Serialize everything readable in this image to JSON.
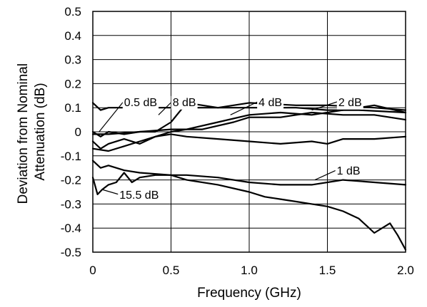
{
  "chart_data": {
    "type": "line",
    "xlabel": "Frequency (GHz)",
    "ylabel_lines": [
      "Deviation from Nominal",
      "Attenuation (dB)"
    ],
    "xlim": [
      0,
      2.0
    ],
    "ylim": [
      -0.5,
      0.5
    ],
    "xticks": [
      "0",
      "0.5",
      "1.0",
      "1.5",
      "2.0"
    ],
    "yticks": [
      "0.5",
      "0.4",
      "0.3",
      "0.2",
      "0.1",
      "0",
      "-0.1",
      "-0.2",
      "-0.3",
      "-0.4",
      "-0.5"
    ],
    "grid": true,
    "series": [
      {
        "name": "0.5 dB",
        "x": [
          0,
          0.05,
          0.1,
          0.2,
          0.3,
          0.5,
          0.7,
          1.0,
          1.3,
          1.5,
          1.7,
          2.0
        ],
        "y": [
          0.12,
          0.09,
          0.1,
          0.1,
          0.1,
          0.1,
          0.1,
          0.1,
          0.1,
          0.09,
          0.09,
          0.08
        ]
      },
      {
        "name": "8 dB",
        "x": [
          0,
          0.05,
          0.1,
          0.2,
          0.3,
          0.4,
          0.5,
          0.6,
          0.8,
          1.0,
          1.3,
          1.5,
          1.8,
          2.0
        ],
        "y": [
          0.0,
          -0.02,
          0.0,
          -0.01,
          0.0,
          0.0,
          0.04,
          0.12,
          0.1,
          0.12,
          0.11,
          0.11,
          0.1,
          0.09
        ]
      },
      {
        "name": "4 dB",
        "x": [
          0,
          0.05,
          0.1,
          0.2,
          0.3,
          0.4,
          0.5,
          0.6,
          0.8,
          1.0,
          1.2,
          1.4,
          1.6,
          1.8,
          2.0
        ],
        "y": [
          -0.04,
          -0.07,
          -0.05,
          -0.03,
          -0.05,
          -0.02,
          0.0,
          0.01,
          0.04,
          0.07,
          0.08,
          0.07,
          0.09,
          0.11,
          0.08
        ]
      },
      {
        "name": "2 dB",
        "x": [
          0,
          0.1,
          0.3,
          0.5,
          0.7,
          0.9,
          1.0,
          1.2,
          1.4,
          1.6,
          1.8,
          2.0
        ],
        "y": [
          -0.01,
          -0.01,
          0.0,
          0.01,
          0.01,
          0.04,
          0.06,
          0.06,
          0.08,
          0.07,
          0.07,
          0.05
        ]
      },
      {
        "name": "1 dB",
        "x": [
          0,
          0.1,
          0.2,
          0.3,
          0.4,
          0.5,
          0.6,
          0.8,
          1.0,
          1.2,
          1.4,
          1.5,
          1.6,
          1.8,
          2.0
        ],
        "y": [
          -0.07,
          -0.08,
          -0.06,
          -0.04,
          -0.02,
          -0.01,
          -0.02,
          -0.03,
          -0.04,
          -0.05,
          -0.04,
          -0.05,
          -0.03,
          -0.03,
          -0.02
        ]
      },
      {
        "name": "15.5 dB",
        "x": [
          0,
          0.05,
          0.1,
          0.2,
          0.3,
          0.5,
          0.6,
          0.8,
          1.0,
          1.2,
          1.4,
          1.6,
          1.8,
          2.0
        ],
        "y": [
          -0.12,
          -0.15,
          -0.14,
          -0.16,
          -0.17,
          -0.18,
          -0.18,
          -0.19,
          -0.21,
          -0.22,
          -0.22,
          -0.2,
          -0.21,
          -0.22
        ]
      },
      {
        "name": "",
        "x": [
          0,
          0.03,
          0.06,
          0.1,
          0.15,
          0.2,
          0.25,
          0.3,
          0.4,
          0.5,
          0.6,
          0.8,
          1.0,
          1.1,
          1.2,
          1.3,
          1.4,
          1.5,
          1.6,
          1.7,
          1.75,
          1.8,
          1.85,
          1.9,
          1.95,
          2.0
        ],
        "y": [
          -0.19,
          -0.26,
          -0.24,
          -0.22,
          -0.21,
          -0.17,
          -0.21,
          -0.19,
          -0.18,
          -0.18,
          -0.2,
          -0.22,
          -0.25,
          -0.27,
          -0.28,
          -0.29,
          -0.3,
          -0.31,
          -0.33,
          -0.36,
          -0.39,
          -0.42,
          -0.4,
          -0.38,
          -0.43,
          -0.49
        ]
      }
    ],
    "annotations": [
      {
        "text": "0.5 dB",
        "x": 0.2,
        "y": 0.125,
        "tx": 0.04,
        "ty": 0.0
      },
      {
        "text": "8 dB",
        "x": 0.51,
        "y": 0.125,
        "tx": 0.42,
        "ty": 0.07
      },
      {
        "text": "4 dB",
        "x": 1.06,
        "y": 0.125,
        "tx": 0.88,
        "ty": 0.07
      },
      {
        "text": "2 dB",
        "x": 1.57,
        "y": 0.125,
        "tx": 1.4,
        "ty": 0.09
      },
      {
        "text": "1 dB",
        "x": 1.56,
        "y": -0.16,
        "tx": 1.42,
        "ty": -0.2
      },
      {
        "text": "15.5 dB",
        "x": 0.17,
        "y": -0.26,
        "tx": 0.06,
        "ty": -0.24
      }
    ]
  }
}
